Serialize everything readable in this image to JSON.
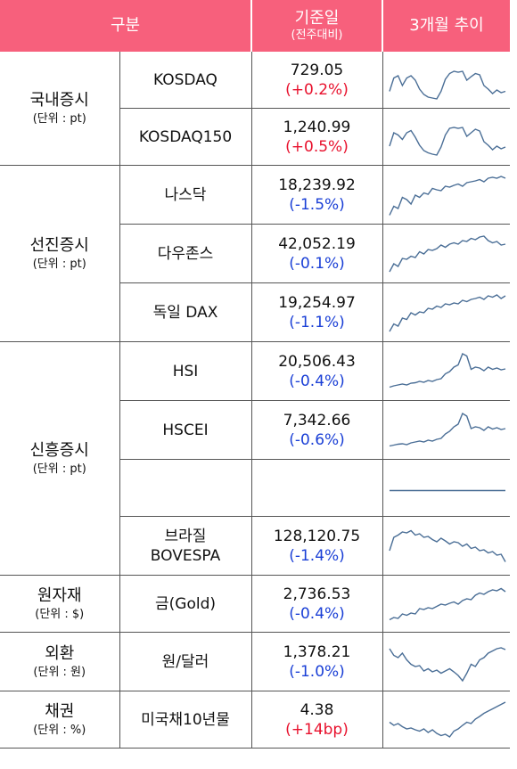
{
  "header": {
    "category": "구분",
    "base_date": "기준일",
    "base_date_sub": "(전주대비)",
    "trend": "3개월 추이"
  },
  "groups": {
    "domestic": {
      "label": "국내증시",
      "unit": "(단위 : pt)"
    },
    "developed": {
      "label": "선진증시",
      "unit": "(단위 : pt)"
    },
    "emerging": {
      "label": "신흥증시",
      "unit": "(단위 : pt)"
    },
    "commodity": {
      "label": "원자재",
      "unit": "(단위 : $)"
    },
    "fx": {
      "label": "외환",
      "unit": "(단위 : 원)"
    },
    "bond": {
      "label": "채권",
      "unit": "(단위 : %)"
    }
  },
  "rows": [
    {
      "name": "KOSDAQ",
      "value": "729.05",
      "change": "(+0.2%)",
      "direction": "up",
      "trend": [
        0.75,
        0.45,
        0.4,
        0.62,
        0.45,
        0.4,
        0.5,
        0.7,
        0.82,
        0.88,
        0.9,
        0.92,
        0.75,
        0.48,
        0.35,
        0.3,
        0.32,
        0.3,
        0.5,
        0.42,
        0.35,
        0.38,
        0.62,
        0.7,
        0.8,
        0.72,
        0.78,
        0.75
      ]
    },
    {
      "name": "KOSDAQ150",
      "value": "1,240.99",
      "change": "(+0.5%)",
      "direction": "up",
      "trend": [
        0.7,
        0.4,
        0.45,
        0.55,
        0.4,
        0.35,
        0.5,
        0.68,
        0.8,
        0.85,
        0.88,
        0.9,
        0.72,
        0.45,
        0.3,
        0.28,
        0.3,
        0.28,
        0.48,
        0.4,
        0.32,
        0.36,
        0.6,
        0.68,
        0.78,
        0.7,
        0.76,
        0.72
      ]
    },
    {
      "name": "나스닥",
      "value": "18,239.92",
      "change": "(-1.5%)",
      "direction": "down",
      "trend": [
        0.95,
        0.75,
        0.8,
        0.55,
        0.6,
        0.7,
        0.5,
        0.55,
        0.45,
        0.48,
        0.35,
        0.38,
        0.4,
        0.3,
        0.32,
        0.28,
        0.25,
        0.3,
        0.22,
        0.2,
        0.18,
        0.15,
        0.2,
        0.12,
        0.1,
        0.12,
        0.08,
        0.12
      ]
    },
    {
      "name": "다우존스",
      "value": "42,052.19",
      "change": "(-0.1%)",
      "direction": "down",
      "trend": [
        0.9,
        0.72,
        0.78,
        0.6,
        0.62,
        0.55,
        0.58,
        0.45,
        0.5,
        0.4,
        0.42,
        0.38,
        0.3,
        0.35,
        0.28,
        0.25,
        0.28,
        0.2,
        0.22,
        0.15,
        0.18,
        0.12,
        0.1,
        0.2,
        0.25,
        0.22,
        0.3,
        0.28
      ]
    },
    {
      "name": "독일 DAX",
      "value": "19,254.97",
      "change": "(-1.1%)",
      "direction": "down",
      "trend": [
        0.92,
        0.75,
        0.8,
        0.62,
        0.65,
        0.5,
        0.55,
        0.48,
        0.5,
        0.4,
        0.42,
        0.35,
        0.38,
        0.3,
        0.32,
        0.28,
        0.3,
        0.22,
        0.25,
        0.2,
        0.18,
        0.15,
        0.2,
        0.12,
        0.15,
        0.1,
        0.18,
        0.12
      ]
    },
    {
      "name": "HSI",
      "value": "20,506.43",
      "change": "(-0.4%)",
      "direction": "down",
      "trend": [
        0.85,
        0.82,
        0.8,
        0.78,
        0.8,
        0.76,
        0.75,
        0.72,
        0.74,
        0.7,
        0.72,
        0.68,
        0.66,
        0.55,
        0.5,
        0.4,
        0.35,
        0.1,
        0.15,
        0.45,
        0.4,
        0.42,
        0.48,
        0.4,
        0.45,
        0.42,
        0.46,
        0.44
      ]
    },
    {
      "name": "HSCEI",
      "value": "7,342.66",
      "change": "(-0.6%)",
      "direction": "down",
      "trend": [
        0.85,
        0.83,
        0.81,
        0.8,
        0.82,
        0.78,
        0.76,
        0.74,
        0.76,
        0.72,
        0.74,
        0.7,
        0.68,
        0.58,
        0.52,
        0.42,
        0.36,
        0.12,
        0.18,
        0.46,
        0.42,
        0.44,
        0.5,
        0.42,
        0.47,
        0.44,
        0.48,
        0.46
      ]
    },
    {
      "name": "",
      "value": "",
      "change": "",
      "direction": "none",
      "trend": [
        0.55,
        0.55,
        0.55,
        0.55,
        0.55,
        0.55,
        0.55,
        0.55,
        0.55,
        0.55,
        0.55,
        0.55,
        0.55,
        0.55,
        0.55,
        0.55,
        0.55,
        0.55,
        0.55,
        0.55,
        0.55,
        0.55,
        0.55,
        0.55,
        0.55,
        0.55,
        0.55,
        0.55
      ]
    },
    {
      "name": "브라질\nBOVESPA",
      "name_line1": "브라질",
      "name_line2": "BOVESPA",
      "value": "128,120.75",
      "change": "(-1.4%)",
      "direction": "down",
      "trend": [
        0.6,
        0.3,
        0.25,
        0.18,
        0.2,
        0.15,
        0.25,
        0.22,
        0.3,
        0.28,
        0.35,
        0.4,
        0.32,
        0.38,
        0.45,
        0.4,
        0.42,
        0.5,
        0.45,
        0.55,
        0.52,
        0.6,
        0.58,
        0.65,
        0.62,
        0.7,
        0.68,
        0.85
      ]
    },
    {
      "name": "금(Gold)",
      "value": "2,736.53",
      "change": "(-0.4%)",
      "direction": "down",
      "trend": [
        0.85,
        0.8,
        0.82,
        0.72,
        0.75,
        0.7,
        0.72,
        0.6,
        0.62,
        0.58,
        0.6,
        0.55,
        0.5,
        0.52,
        0.48,
        0.45,
        0.5,
        0.42,
        0.38,
        0.4,
        0.3,
        0.25,
        0.28,
        0.22,
        0.18,
        0.2,
        0.15,
        0.22
      ]
    },
    {
      "name": "원/달러",
      "value": "1,378.21",
      "change": "(-1.0%)",
      "direction": "down",
      "trend": [
        0.2,
        0.35,
        0.4,
        0.3,
        0.45,
        0.55,
        0.6,
        0.58,
        0.7,
        0.65,
        0.72,
        0.68,
        0.75,
        0.7,
        0.65,
        0.72,
        0.8,
        0.92,
        0.75,
        0.55,
        0.6,
        0.45,
        0.4,
        0.3,
        0.25,
        0.2,
        0.18,
        0.22
      ]
    },
    {
      "name": "미국채10년물",
      "value": "4.38",
      "change": "(+14bp)",
      "direction": "up",
      "trend": [
        0.55,
        0.62,
        0.58,
        0.65,
        0.7,
        0.68,
        0.72,
        0.75,
        0.7,
        0.78,
        0.72,
        0.8,
        0.85,
        0.82,
        0.88,
        0.75,
        0.7,
        0.62,
        0.55,
        0.58,
        0.48,
        0.42,
        0.35,
        0.3,
        0.25,
        0.2,
        0.15,
        0.1
      ]
    }
  ]
}
